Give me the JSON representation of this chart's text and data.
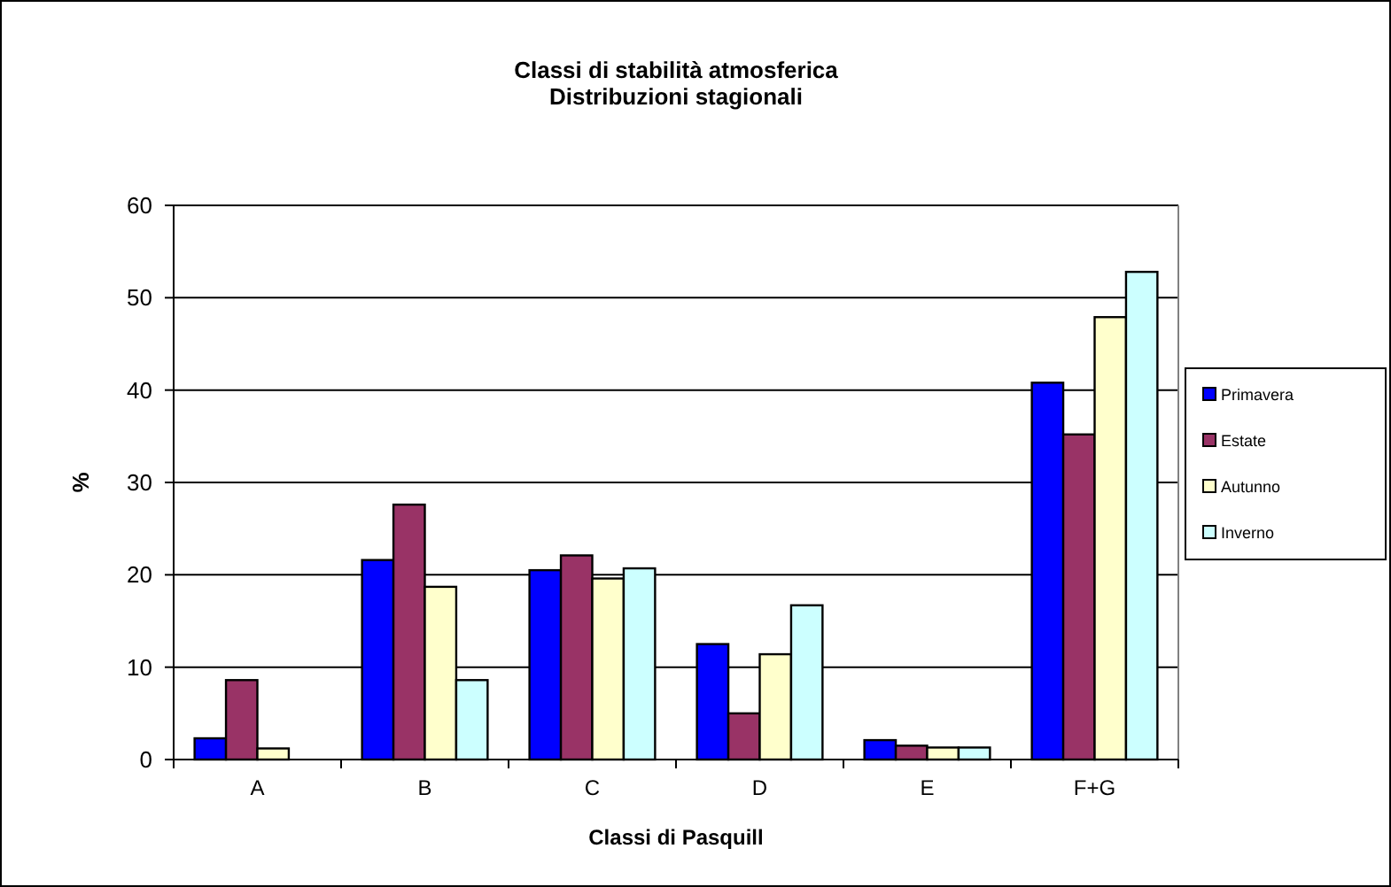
{
  "chart_data": {
    "type": "bar",
    "title": "Classi di stabilità atmosferica\nDistribuzioni stagionali",
    "xlabel": "Classi di Pasquill",
    "ylabel": "%",
    "categories": [
      "A",
      "B",
      "C",
      "D",
      "E",
      "F+G"
    ],
    "series": [
      {
        "name": "Primavera",
        "color": "#0000ff",
        "values": [
          2.3,
          21.6,
          20.5,
          12.5,
          2.1,
          40.8
        ]
      },
      {
        "name": "Estate",
        "color": "#993366",
        "values": [
          8.6,
          27.6,
          22.1,
          5.0,
          1.5,
          35.2
        ]
      },
      {
        "name": "Autunno",
        "color": "#ffffcc",
        "values": [
          1.2,
          18.7,
          19.6,
          11.4,
          1.3,
          47.9
        ]
      },
      {
        "name": "Inverno",
        "color": "#ccffff",
        "values": [
          0,
          8.6,
          20.7,
          16.7,
          1.3,
          52.8
        ]
      }
    ],
    "ylim": [
      0,
      60
    ],
    "yticks": [
      0,
      10,
      20,
      30,
      40,
      50,
      60
    ],
    "grid": "y",
    "legend": "right"
  }
}
